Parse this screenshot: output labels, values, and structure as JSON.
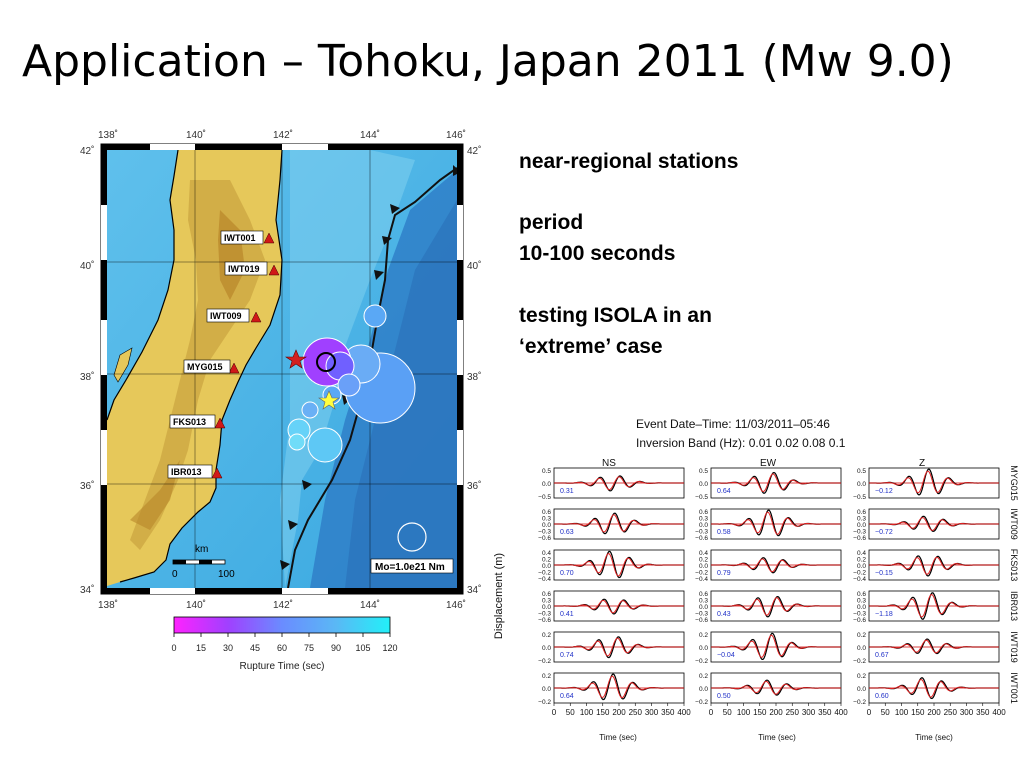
{
  "slide": {
    "title": "Application – Tohoku, Japan 2011 (Mw 9.0)",
    "notes": {
      "line1": "near-regional stations",
      "line2": "period",
      "line3": "10-100 seconds",
      "line4": "testing ISOLA in an",
      "line5": "‘extreme’ case"
    }
  },
  "map": {
    "lon_ticks": [
      "138˚",
      "140˚",
      "142˚",
      "144˚",
      "146˚"
    ],
    "lat_ticks": [
      "42˚",
      "40˚",
      "38˚",
      "36˚",
      "34˚"
    ],
    "stations": [
      "IWT001",
      "IWT019",
      "IWT009",
      "MYG015",
      "FKS013",
      "IBR013"
    ],
    "scale_unit": "km",
    "scale_0": "0",
    "scale_100": "100",
    "moment_label": "Mo=1.0e21 Nm",
    "colorbar_ticks": [
      "0",
      "15",
      "30",
      "45",
      "60",
      "75",
      "90",
      "105",
      "120"
    ],
    "colorbar_label": "Rupture Time (sec)",
    "colors": {
      "fault_purple": "#a040ff",
      "fault_blue": "#5aa0f5",
      "fault_cyan": "#66d8f8",
      "epicenter": "#d32020"
    }
  },
  "waveforms": {
    "header1": "Event Date–Time: 11/03/2011–05:46",
    "header2": "Inversion Band (Hz): 0.01 0.02 0.08 0.1",
    "components": [
      "NS",
      "EW",
      "Z"
    ],
    "ylabel": "Displacement (m)",
    "xlabel": "Time (sec)",
    "time_ticks": [
      "0",
      "50",
      "100",
      "150",
      "200",
      "250",
      "300",
      "350",
      "400"
    ],
    "rows": [
      {
        "station": "MYG015",
        "yticks": [
          "0.5",
          "0.0",
          "−0.5"
        ],
        "vr": [
          "0.31",
          "0.64",
          "−0.12"
        ]
      },
      {
        "station": "IWT009",
        "yticks": [
          "0.6",
          "0.3",
          "0.0",
          "−0.3",
          "−0.6"
        ],
        "vr": [
          "0.63",
          "0.58",
          "−0.72"
        ]
      },
      {
        "station": "FKS013",
        "yticks": [
          "0.4",
          "0.2",
          "0.0",
          "−0.2",
          "−0.4"
        ],
        "vr": [
          "0.70",
          "0.79",
          "−0.15"
        ]
      },
      {
        "station": "IBR013",
        "yticks": [
          "0.6",
          "0.3",
          "0.0",
          "−0.3",
          "−0.6"
        ],
        "vr": [
          "0.41",
          "0.43",
          "−1.18"
        ]
      },
      {
        "station": "IWT019",
        "yticks": [
          "0.2",
          "0.0",
          "−0.2"
        ],
        "vr": [
          "0.74",
          "−0.04",
          "0.67"
        ]
      },
      {
        "station": "IWT001",
        "yticks": [
          "0.2",
          "0.0",
          "−0.2"
        ],
        "vr": [
          "0.64",
          "0.50",
          "0.60"
        ]
      }
    ]
  }
}
